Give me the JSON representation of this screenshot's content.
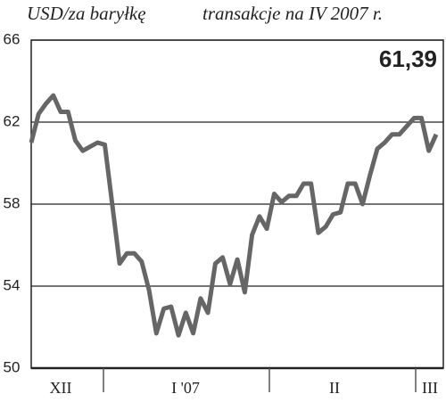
{
  "chart_data": {
    "type": "line",
    "title": "USD/za baryłkę",
    "subtitle": "transakcje na IV 2007 r.",
    "annotation": "61,39",
    "month_labels": [
      "XII",
      "I '07",
      "II",
      "III"
    ],
    "color": "#666666",
    "values": [
      61.0,
      62.4,
      62.9,
      63.3,
      62.5,
      62.5,
      61.1,
      60.6,
      60.8,
      61.0,
      60.9,
      58.0,
      55.1,
      55.6,
      55.6,
      55.2,
      53.8,
      51.7,
      52.9,
      53.0,
      51.6,
      52.7,
      51.7,
      53.4,
      52.7,
      55.1,
      55.4,
      54.1,
      55.3,
      53.7,
      56.5,
      57.4,
      56.8,
      58.5,
      58.1,
      58.4,
      58.4,
      59.0,
      59.0,
      56.6,
      56.9,
      57.5,
      57.6,
      59.0,
      59.0,
      58.0,
      59.4,
      60.7,
      61.0,
      61.4,
      61.4,
      61.8,
      62.2,
      62.2,
      60.6,
      61.4
    ],
    "ylim": [
      50,
      66
    ],
    "yticks": [
      50,
      54,
      58,
      62,
      66
    ],
    "grid": true
  }
}
